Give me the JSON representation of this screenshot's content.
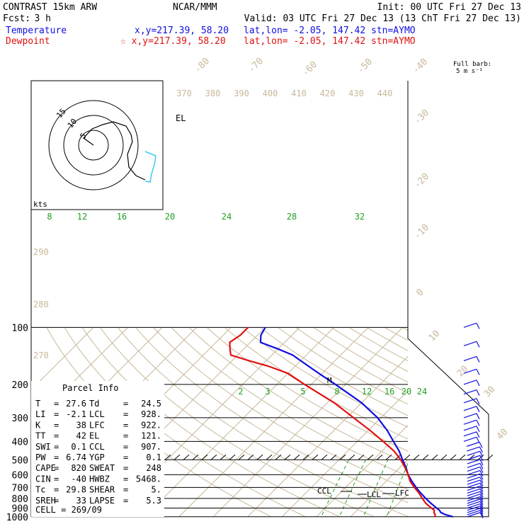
{
  "header": {
    "model": "CONTRAST 15km ARW",
    "org": "NCAR/MMM",
    "init": "Init: 00 UTC Fri 27 Dec 13",
    "fcst_label": "Fcst:",
    "fcst_value": "3 h",
    "valid": "Valid: 03 UTC Fri 27 Dec 13 (13 ChT Fri 27 Dec 13)",
    "temp_line": {
      "label": "Temperature",
      "xy": "x,y=217.39, 58.20",
      "latlon": "lat,lon= -2.05, 147.42",
      "stn": "stn=AYMO"
    },
    "dew_line": {
      "label": "Dewpoint",
      "xy": "☆ x,y=217.39, 58.20",
      "latlon": "lat,lon= -2.05, 147.42",
      "stn": "stn=AYMO"
    }
  },
  "colors": {
    "temperature": "#1010e0",
    "dewpoint": "#e01010",
    "isotherm": "#c8b89a",
    "mixing_ratio": "#20a020",
    "hodo_highlight": "#40c8f0"
  },
  "chart_data": {
    "type": "line",
    "pressure_levels": [
      "100",
      "200",
      "300",
      "400",
      "500",
      "600",
      "700",
      "800",
      "900",
      "1000"
    ],
    "isotherm_labels": [
      "-80",
      "-70",
      "-60",
      "-50",
      "-40",
      "-30",
      "-20",
      "-10",
      "0",
      "10",
      "20",
      "30",
      "40"
    ],
    "theta_labels_top": [
      "370",
      "380",
      "390",
      "400",
      "410",
      "420",
      "430",
      "440"
    ],
    "theta_labels_left": [
      "290",
      "280",
      "270"
    ],
    "mixing_labels_upper": [
      "8",
      "12",
      "16",
      "20",
      "24",
      "28",
      "32"
    ],
    "mixing_labels_lower": [
      "2",
      "3",
      "5",
      "8",
      "12",
      "16",
      "20",
      "24"
    ],
    "series": [
      {
        "name": "Temperature",
        "points": [
          [
            1000,
            29.8
          ],
          [
            975,
            27.0
          ],
          [
            950,
            25.0
          ],
          [
            925,
            24.0
          ],
          [
            900,
            22.5
          ],
          [
            850,
            19.5
          ],
          [
            800,
            16.5
          ],
          [
            750,
            13.5
          ],
          [
            700,
            10.5
          ],
          [
            650,
            7.5
          ],
          [
            600,
            4.5
          ],
          [
            550,
            1.8
          ],
          [
            500,
            -1.5
          ],
          [
            450,
            -5.0
          ],
          [
            400,
            -9.5
          ],
          [
            350,
            -14.5
          ],
          [
            300,
            -21.0
          ],
          [
            250,
            -30.0
          ],
          [
            200,
            -43.0
          ],
          [
            175,
            -51.0
          ],
          [
            150,
            -60.0
          ],
          [
            140,
            -64.0
          ],
          [
            130,
            -70.0
          ],
          [
            120,
            -77.0
          ],
          [
            110,
            -79.0
          ],
          [
            100,
            -80.0
          ]
        ]
      },
      {
        "name": "Dewpoint",
        "points": [
          [
            1000,
            24.5
          ],
          [
            975,
            24.0
          ],
          [
            950,
            23.0
          ],
          [
            925,
            22.5
          ],
          [
            900,
            21.0
          ],
          [
            850,
            18.0
          ],
          [
            800,
            15.5
          ],
          [
            750,
            13.0
          ],
          [
            700,
            10.0
          ],
          [
            650,
            7.0
          ],
          [
            600,
            4.5
          ],
          [
            550,
            1.5
          ],
          [
            500,
            -2.0
          ],
          [
            450,
            -6.5
          ],
          [
            400,
            -12.5
          ],
          [
            350,
            -19.5
          ],
          [
            300,
            -28.0
          ],
          [
            250,
            -38.0
          ],
          [
            200,
            -52.0
          ],
          [
            175,
            -60.0
          ],
          [
            160,
            -68.0
          ],
          [
            150,
            -75.0
          ],
          [
            140,
            -82.0
          ],
          [
            130,
            -84.0
          ],
          [
            120,
            -86.0
          ],
          [
            110,
            -85.0
          ],
          [
            100,
            -85.0
          ]
        ]
      }
    ],
    "annotations": [
      "EL",
      "M",
      "CCL",
      "LCL",
      "LFC"
    ],
    "hodograph": {
      "units": "kts",
      "rings": [
        "5",
        "10",
        "15"
      ]
    },
    "wind_barb_legend": {
      "line1": "Full barb:",
      "line2": "5 m s⁻¹"
    }
  },
  "parcel_info": {
    "title": "Parcel Info",
    "rows": [
      {
        "k1": "T",
        "v1": "27.6",
        "k2": "Td",
        "v2": "24.5"
      },
      {
        "k1": "LI",
        "v1": "-2.1",
        "k2": "LCL",
        "v2": "928."
      },
      {
        "k1": "K",
        "v1": "38",
        "k2": "LFC",
        "v2": "922."
      },
      {
        "k1": "TT",
        "v1": "42",
        "k2": "EL",
        "v2": "121."
      },
      {
        "k1": "SWI",
        "v1": "0.1",
        "k2": "CCL",
        "v2": "907."
      },
      {
        "k1": "PW",
        "v1": "6.74",
        "k2": "YGP",
        "v2": "0.1"
      },
      {
        "k1": "CAPE",
        "v1": "820",
        "k2": "SWEAT",
        "v2": "248"
      },
      {
        "k1": "CIN",
        "v1": "-40",
        "k2": "HWBZ",
        "v2": "5468."
      },
      {
        "k1": "Tc",
        "v1": "29.8",
        "k2": "SHEAR",
        "v2": "5."
      },
      {
        "k1": "SREH",
        "v1": "33",
        "k2": "LAPSE",
        "v2": "5.3"
      }
    ],
    "cell_label": "CELL",
    "cell_value": "269/09"
  }
}
